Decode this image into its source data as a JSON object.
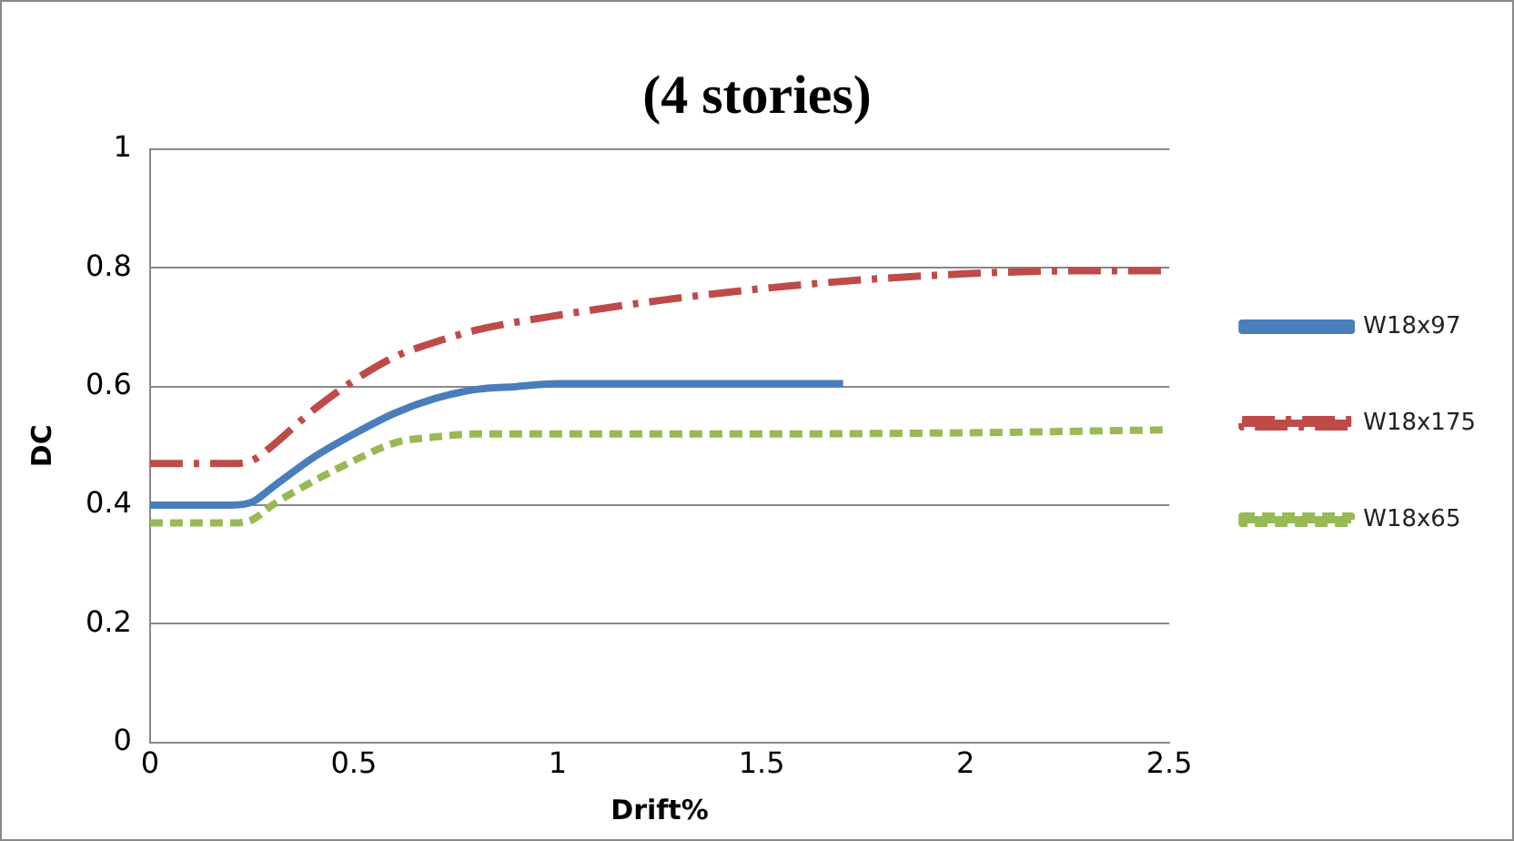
{
  "chart_data": {
    "type": "line",
    "title": "(4 stories)",
    "xlabel": "Drift%",
    "ylabel": "DC",
    "xlim": [
      0,
      2.5
    ],
    "xticks": [
      0,
      0.5,
      1,
      1.5,
      2,
      2.5
    ],
    "ylim": [
      0,
      1
    ],
    "yticks": [
      0,
      0.2,
      0.4,
      0.6,
      0.8,
      1
    ],
    "grid": "y",
    "legend": "right",
    "marker": "none",
    "series": [
      {
        "name": "W18x97",
        "color": "#4a7ebb",
        "line_style": "solid",
        "x": [
          0,
          0.1,
          0.2,
          0.25,
          0.3,
          0.4,
          0.5,
          0.6,
          0.7,
          0.8,
          0.9,
          1.0,
          1.2,
          1.5,
          1.7
        ],
        "values": [
          0.4,
          0.4,
          0.4,
          0.405,
          0.43,
          0.48,
          0.52,
          0.555,
          0.58,
          0.595,
          0.6,
          0.605,
          0.605,
          0.605,
          0.605
        ]
      },
      {
        "name": "W18x175",
        "color": "#be4b48",
        "line_style": "dashed",
        "x": [
          0,
          0.2,
          0.25,
          0.3,
          0.4,
          0.5,
          0.6,
          0.7,
          0.8,
          1.0,
          1.25,
          1.5,
          1.75,
          2.0,
          2.25,
          2.5
        ],
        "values": [
          0.47,
          0.47,
          0.475,
          0.5,
          0.56,
          0.61,
          0.65,
          0.675,
          0.695,
          0.72,
          0.745,
          0.765,
          0.78,
          0.79,
          0.795,
          0.795
        ]
      },
      {
        "name": "W18x65",
        "color": "#98b954",
        "line_style": "dotted",
        "x": [
          0,
          0.2,
          0.25,
          0.3,
          0.4,
          0.5,
          0.6,
          0.7,
          0.8,
          1.0,
          1.5,
          2.0,
          2.5
        ],
        "values": [
          0.37,
          0.37,
          0.375,
          0.4,
          0.44,
          0.475,
          0.505,
          0.515,
          0.52,
          0.52,
          0.52,
          0.522,
          0.527
        ]
      }
    ]
  }
}
